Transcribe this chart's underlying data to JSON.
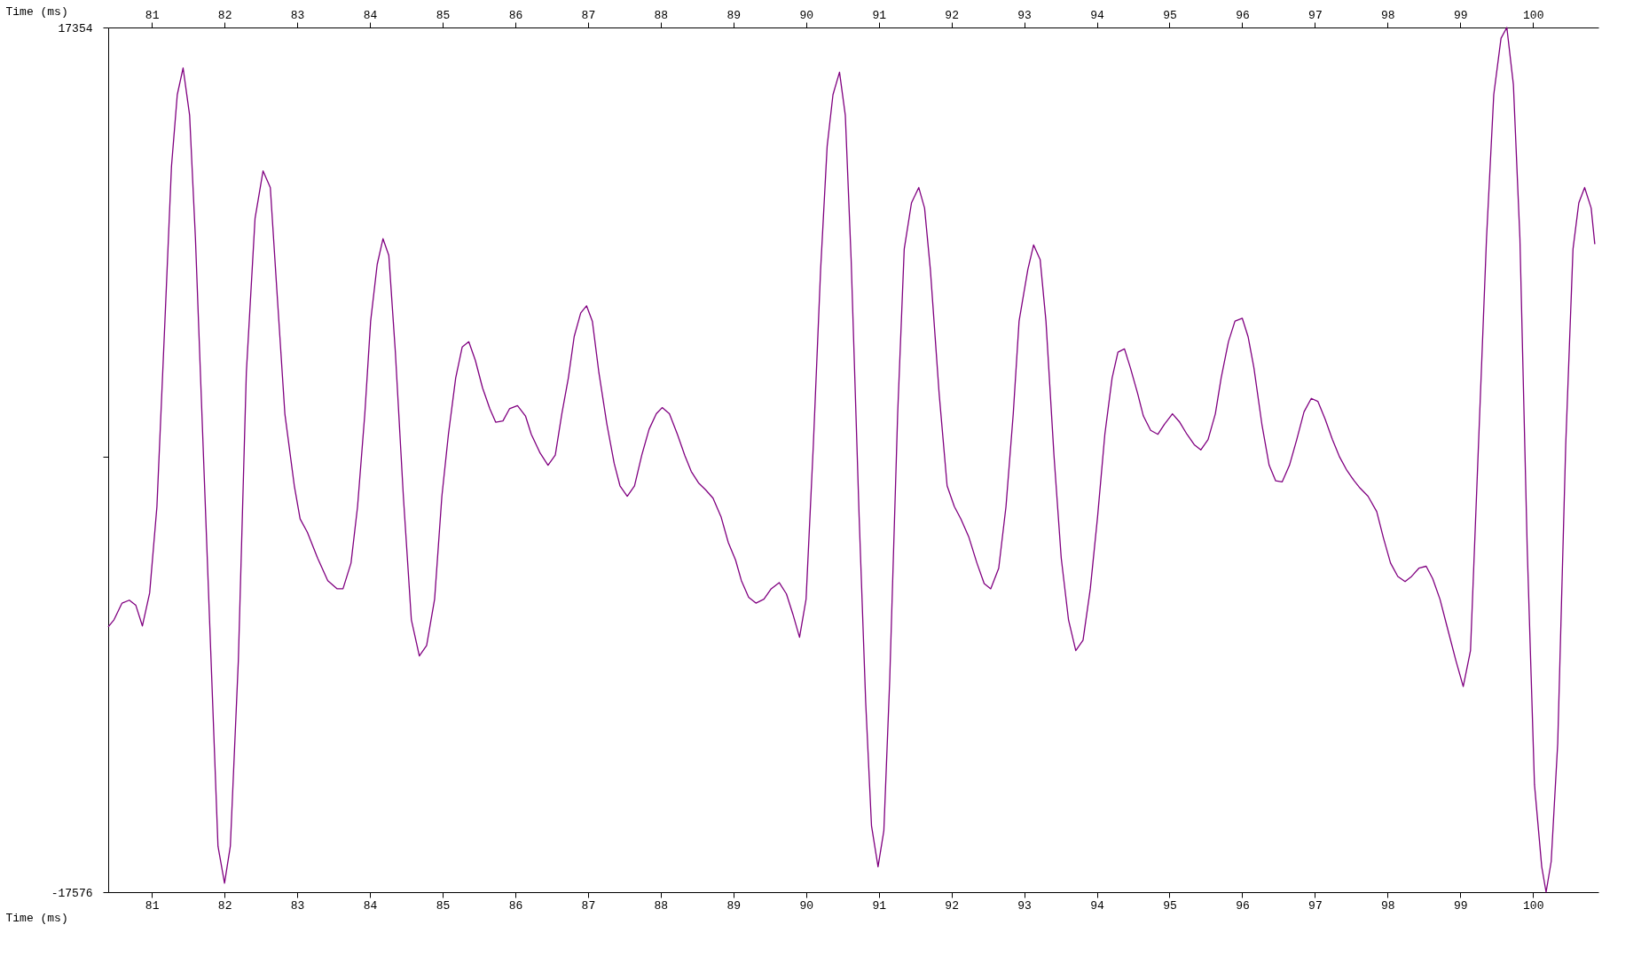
{
  "chart_data": {
    "type": "line",
    "xlabel": "Time (ms)",
    "x2label": "Time (ms)",
    "xlim": [
      80.4,
      100.9
    ],
    "xticks": [
      81,
      82,
      83,
      84,
      85,
      86,
      87,
      88,
      89,
      90,
      91,
      92,
      93,
      94,
      95,
      96,
      97,
      98,
      99,
      100
    ],
    "x2lim": [
      80.4,
      100.9
    ],
    "x2ticks": [
      81,
      82,
      83,
      84,
      85,
      86,
      87,
      88,
      89,
      90,
      91,
      92,
      93,
      94,
      95,
      96,
      97,
      98,
      99,
      100
    ],
    "ylim": [
      -17576,
      17354
    ],
    "yticks": [
      -17576,
      {
        "value": 0,
        "label": null
      },
      17354
    ],
    "grid": false,
    "marker": "none",
    "line_style": "solid",
    "series": [
      {
        "color": "#800080",
        "x": [
          80.4,
          80.48,
          80.59,
          80.69,
          80.78,
          80.87,
          80.97,
          81.07,
          81.18,
          81.27,
          81.35,
          81.43,
          81.52,
          81.6,
          81.71,
          81.81,
          81.91,
          82.0,
          82.08,
          82.19,
          82.3,
          82.42,
          82.53,
          82.63,
          82.72,
          82.83,
          82.96,
          83.04,
          83.14,
          83.28,
          83.42,
          83.55,
          83.63,
          83.74,
          83.83,
          83.93,
          84.01,
          84.1,
          84.18,
          84.26,
          84.35,
          84.46,
          84.57,
          84.68,
          84.78,
          84.89,
          84.99,
          85.08,
          85.18,
          85.27,
          85.36,
          85.45,
          85.55,
          85.65,
          85.73,
          85.83,
          85.92,
          86.03,
          86.14,
          86.22,
          86.34,
          86.45,
          86.55,
          86.64,
          86.73,
          86.81,
          86.9,
          86.98,
          87.06,
          87.15,
          87.26,
          87.36,
          87.44,
          87.54,
          87.64,
          87.74,
          87.84,
          87.94,
          88.02,
          88.12,
          88.23,
          88.33,
          88.42,
          88.52,
          88.62,
          88.72,
          88.83,
          88.93,
          89.03,
          89.11,
          89.21,
          89.31,
          89.42,
          89.52,
          89.63,
          89.73,
          89.82,
          89.91,
          90.0,
          90.1,
          90.2,
          90.29,
          90.37,
          90.46,
          90.54,
          90.62,
          90.73,
          90.82,
          90.9,
          90.99,
          91.07,
          91.15,
          91.26,
          91.35,
          91.45,
          91.55,
          91.63,
          91.71,
          91.83,
          91.94,
          92.04,
          92.13,
          92.24,
          92.35,
          92.45,
          92.54,
          92.65,
          92.75,
          92.85,
          92.93,
          93.05,
          93.13,
          93.22,
          93.3,
          93.41,
          93.51,
          93.61,
          93.71,
          93.81,
          93.91,
          94.01,
          94.11,
          94.21,
          94.29,
          94.38,
          94.46,
          94.56,
          94.64,
          94.74,
          94.84,
          94.93,
          95.04,
          95.14,
          95.24,
          95.34,
          95.43,
          95.53,
          95.63,
          95.71,
          95.81,
          95.9,
          96.0,
          96.08,
          96.16,
          96.27,
          96.37,
          96.46,
          96.55,
          96.65,
          96.75,
          96.85,
          96.95,
          97.04,
          97.14,
          97.24,
          97.34,
          97.44,
          97.54,
          97.62,
          97.73,
          97.85,
          97.94,
          98.04,
          98.14,
          98.24,
          98.33,
          98.43,
          98.53,
          98.62,
          98.72,
          98.83,
          98.94,
          99.04,
          99.14,
          99.25,
          99.36,
          99.46,
          99.56,
          99.64,
          99.73,
          99.82,
          99.92,
          100.02,
          100.12,
          100.18,
          100.25,
          100.34,
          100.45,
          100.55,
          100.63,
          100.71,
          100.8,
          100.85
        ],
        "values": [
          -6860,
          -6570,
          -5900,
          -5780,
          -5990,
          -6820,
          -5490,
          -2000,
          5490,
          11730,
          14640,
          15720,
          13800,
          8820,
          80,
          -7820,
          -15720,
          -17210,
          -15720,
          -8230,
          3410,
          9650,
          11560,
          10890,
          6740,
          1750,
          -1160,
          -2500,
          -3040,
          -4080,
          -4990,
          -5320,
          -5320,
          -4280,
          -2000,
          1750,
          5490,
          7780,
          8820,
          8150,
          4240,
          -1580,
          -6570,
          -8030,
          -7610,
          -5740,
          -1580,
          920,
          3200,
          4450,
          4660,
          3910,
          2790,
          1950,
          1410,
          1460,
          1950,
          2080,
          1660,
          920,
          170,
          -330,
          80,
          1750,
          3200,
          4870,
          5820,
          6110,
          5490,
          3410,
          1330,
          -250,
          -1160,
          -1580,
          -1160,
          80,
          1120,
          1750,
          2000,
          1750,
          920,
          80,
          -580,
          -1040,
          -1330,
          -1660,
          -2410,
          -3450,
          -4160,
          -4990,
          -5660,
          -5900,
          -5740,
          -5320,
          -5070,
          -5530,
          -6360,
          -7280,
          -5740,
          500,
          7570,
          12560,
          14640,
          15550,
          13800,
          7980,
          -2410,
          -9900,
          -14890,
          -16550,
          -15090,
          -9060,
          1750,
          8400,
          10270,
          10890,
          10060,
          7570,
          2580,
          -1160,
          -2000,
          -2500,
          -3240,
          -4280,
          -5110,
          -5320,
          -4490,
          -2000,
          1750,
          5490,
          7570,
          8570,
          7980,
          5490,
          80,
          -4080,
          -6570,
          -7820,
          -7400,
          -5320,
          -2410,
          920,
          3200,
          4240,
          4370,
          3620,
          2580,
          1660,
          1080,
          920,
          1330,
          1750,
          1410,
          920,
          500,
          290,
          710,
          1750,
          3200,
          4660,
          5490,
          5610,
          4870,
          3620,
          1330,
          -330,
          -960,
          -1000,
          -330,
          710,
          1830,
          2370,
          2250,
          1540,
          710,
          0,
          -540,
          -960,
          -1250,
          -1580,
          -2200,
          -3240,
          -4280,
          -4820,
          -5030,
          -4820,
          -4490,
          -4410,
          -4910,
          -5740,
          -6990,
          -8230,
          -9270,
          -7820,
          500,
          8820,
          14640,
          16920,
          17354,
          15050,
          8820,
          -3660,
          -13220,
          -16550,
          -17576,
          -16340,
          -11560,
          500,
          8400,
          10270,
          10890,
          10060,
          8600
        ]
      }
    ]
  }
}
